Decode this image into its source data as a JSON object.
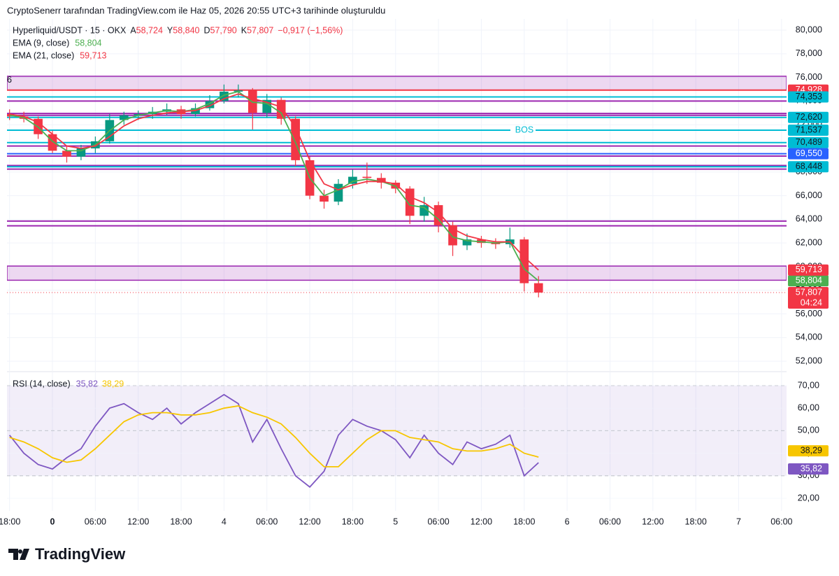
{
  "header": "CryptoSenerr tarafından TradingView.com ile Haz 05, 2026 20:55 UTC+3 tarihinde oluşturuldu",
  "footer": "TradingView",
  "chart_data": [
    {
      "type": "candlestick",
      "legend": {
        "symbol": "Hyperliquid/USDT · 15 · OKX",
        "ohlc": [
          {
            "key": "A",
            "value": 58.724,
            "label": "58,724"
          },
          {
            "key": "Y",
            "value": 58.84,
            "label": "58,840"
          },
          {
            "key": "D",
            "value": 57.79,
            "label": "57,790"
          },
          {
            "key": "K",
            "value": 57.807,
            "label": "57,807"
          }
        ],
        "change": "−0,917 (−1,56%)"
      },
      "countdown": "04:24",
      "up_color": "#089981",
      "down_color": "#f23645",
      "xlim": [
        -6.36,
        102.7
      ],
      "ylim": [
        51.18,
        80.95
      ],
      "xticks": [
        {
          "value": -6,
          "label": "18:00"
        },
        0,
        {
          "value": 6,
          "label": "06:00"
        },
        {
          "value": 12,
          "label": "12:00"
        },
        {
          "value": 18,
          "label": "18:00"
        },
        {
          "value": 24,
          "label": "4"
        },
        {
          "value": 30,
          "label": "06:00"
        },
        {
          "value": 36,
          "label": "12:00"
        },
        {
          "value": 42,
          "label": "18:00"
        },
        {
          "value": 48,
          "label": "5"
        },
        {
          "value": 54,
          "label": "06:00"
        },
        {
          "value": 60,
          "label": "12:00"
        },
        {
          "value": 66,
          "label": "18:00"
        },
        {
          "value": 72,
          "label": "6"
        },
        {
          "value": 78,
          "label": "06:00"
        },
        {
          "value": 84,
          "label": "12:00"
        },
        {
          "value": 90,
          "label": "18:00"
        },
        {
          "value": 96,
          "label": "7"
        },
        {
          "value": 102,
          "label": "06:00"
        }
      ],
      "xtick_first_label_override": null,
      "yticks": [
        {
          "value": 80,
          "label": "80,000"
        },
        {
          "value": 78,
          "label": "78,000"
        },
        {
          "value": 76,
          "label": "76,000"
        },
        {
          "value": 74,
          "label": "74,000"
        },
        {
          "value": 72,
          "label": "72,000"
        },
        {
          "value": 70,
          "label": "70,000"
        },
        {
          "value": 68,
          "label": "68,000"
        },
        {
          "value": 66,
          "label": "66,000"
        },
        {
          "value": 64,
          "label": "64,000"
        },
        {
          "value": 62,
          "label": "62,000"
        },
        {
          "value": 60,
          "label": "60,000"
        },
        {
          "value": 58,
          "label": "58,000"
        },
        {
          "value": 56,
          "label": "56,000"
        },
        {
          "value": 54,
          "label": "54,000"
        },
        {
          "value": 52,
          "label": "52,000"
        }
      ],
      "x": [
        -6,
        -4,
        -2,
        0,
        2,
        4,
        6,
        8,
        10,
        12,
        14,
        16,
        18,
        20,
        22,
        24,
        26,
        28,
        30,
        32,
        34,
        36,
        38,
        40,
        42,
        44,
        46,
        48,
        50,
        52,
        54,
        56,
        58,
        60,
        62,
        64,
        66,
        68
      ],
      "candles": [
        [
          72.9,
          73.3,
          72.4,
          72.7
        ],
        [
          72.7,
          73.1,
          72.2,
          72.5
        ],
        [
          72.5,
          72.7,
          70.8,
          71.2
        ],
        [
          71.2,
          71.5,
          69.6,
          69.8
        ],
        [
          69.8,
          70.2,
          68.8,
          69.3
        ],
        [
          69.3,
          70.3,
          69.0,
          70.0
        ],
        [
          70.0,
          71.0,
          69.6,
          70.6
        ],
        [
          70.6,
          72.9,
          70.4,
          72.4
        ],
        [
          72.4,
          73.1,
          72.0,
          72.8
        ],
        [
          72.8,
          73.2,
          72.4,
          72.9
        ],
        [
          72.9,
          73.5,
          72.5,
          73.1
        ],
        [
          73.1,
          73.8,
          72.8,
          73.3
        ],
        [
          73.3,
          73.6,
          72.5,
          72.9
        ],
        [
          72.9,
          73.8,
          72.7,
          73.4
        ],
        [
          73.4,
          74.5,
          73.2,
          74.0
        ],
        [
          74.0,
          75.4,
          73.8,
          74.8
        ],
        [
          74.8,
          75.4,
          74.3,
          74.9
        ],
        [
          74.9,
          75.1,
          71.6,
          73.0
        ],
        [
          73.0,
          74.6,
          72.6,
          74.1
        ],
        [
          74.1,
          74.3,
          72.0,
          72.5
        ],
        [
          72.5,
          72.7,
          68.5,
          69.0
        ],
        [
          69.0,
          69.3,
          65.7,
          66.0
        ],
        [
          66.0,
          66.5,
          64.9,
          65.5
        ],
        [
          65.5,
          67.4,
          65.2,
          67.0
        ],
        [
          67.0,
          68.2,
          66.6,
          67.6
        ],
        [
          67.6,
          68.8,
          67.0,
          67.5
        ],
        [
          67.5,
          67.9,
          66.6,
          67.1
        ],
        [
          67.1,
          67.3,
          66.2,
          66.6
        ],
        [
          66.6,
          66.8,
          63.6,
          64.3
        ],
        [
          64.3,
          65.9,
          63.8,
          65.2
        ],
        [
          65.2,
          65.5,
          62.9,
          63.5
        ],
        [
          63.5,
          63.8,
          60.9,
          61.8
        ],
        [
          61.8,
          62.8,
          61.4,
          62.3
        ],
        [
          62.3,
          62.6,
          61.6,
          62.0
        ],
        [
          62.0,
          62.4,
          61.5,
          61.9
        ],
        [
          61.9,
          63.3,
          61.6,
          62.3
        ],
        [
          62.3,
          62.5,
          57.9,
          58.6
        ],
        [
          58.6,
          59.2,
          57.4,
          57.807
        ]
      ],
      "series": [
        {
          "name": "EMA (9, close)",
          "color": "#4caf50",
          "last_label": "58,804",
          "values": [
            72.8,
            72.6,
            71.8,
            70.6,
            69.8,
            69.8,
            70.3,
            71.5,
            72.4,
            72.8,
            73.0,
            73.2,
            73.1,
            73.3,
            73.8,
            74.5,
            74.8,
            73.9,
            73.8,
            73.0,
            70.5,
            67.5,
            66.0,
            66.5,
            67.2,
            67.4,
            67.2,
            66.8,
            65.2,
            65.0,
            64.0,
            62.5,
            62.2,
            62.1,
            62.0,
            62.1,
            59.8,
            58.804
          ]
        },
        {
          "name": "EMA (21, close)",
          "color": "#f23645",
          "last_label": "59,713",
          "values": [
            72.9,
            72.7,
            72.2,
            71.2,
            70.2,
            70.0,
            70.2,
            71.0,
            71.9,
            72.5,
            72.8,
            73.0,
            73.1,
            73.2,
            73.6,
            74.2,
            74.6,
            74.2,
            73.9,
            73.5,
            71.8,
            69.0,
            67.0,
            66.5,
            66.9,
            67.2,
            67.2,
            67.0,
            65.9,
            65.4,
            64.6,
            63.2,
            62.6,
            62.3,
            62.1,
            62.1,
            60.8,
            59.713
          ]
        }
      ],
      "zones": [
        {
          "from": 74.928,
          "to": 76.1,
          "tag": "6"
        },
        {
          "from": 58.85,
          "to": 60.05
        }
      ],
      "zone_color": "#9c27b0",
      "levels": [
        {
          "value": 74.928,
          "color": "#f23645",
          "label": "74,928"
        },
        {
          "value": 74.353,
          "color": "#00bcd4",
          "label": "74,353"
        },
        {
          "value": 74.0,
          "color": "#9c27b0"
        },
        {
          "value": 72.95,
          "color": "#9c27b0"
        },
        {
          "value": 72.8,
          "color": "#9c27b0"
        },
        {
          "value": 72.62,
          "color": "#00bcd4",
          "label": "72,620"
        },
        {
          "value": 71.537,
          "color": "#00bcd4",
          "label": "71,537",
          "text": "BOS"
        },
        {
          "value": 70.489,
          "color": "#00bcd4",
          "label": "70,489"
        },
        {
          "value": 70.2,
          "color": "#9c27b0"
        },
        {
          "value": 69.55,
          "color": "#2962ff",
          "label": "69,550"
        },
        {
          "value": 69.35,
          "color": "#9c27b0"
        },
        {
          "value": 68.55,
          "color": "#9c27b0"
        },
        {
          "value": 68.448,
          "color": "#00bcd4",
          "label": "68,448"
        },
        {
          "value": 68.25,
          "color": "#9c27b0"
        },
        {
          "value": 63.85,
          "color": "#9c27b0"
        },
        {
          "value": 63.45,
          "color": "#9c27b0"
        }
      ]
    },
    {
      "type": "rsi",
      "ylim": [
        14.4,
        75.9
      ],
      "yticks": [
        {
          "value": 70,
          "label": "70,00"
        },
        {
          "value": 60,
          "label": "60,00"
        },
        {
          "value": 50,
          "label": "50,00"
        },
        {
          "value": 40,
          "label": "40,00"
        },
        {
          "value": 30,
          "label": "30,00"
        },
        {
          "value": 20,
          "label": "20,00"
        }
      ],
      "band": [
        30,
        70
      ],
      "dashed_levels": [
        70,
        50,
        30
      ],
      "band_color": "#7e57c2",
      "series": [
        {
          "name": "RSI (14, close)",
          "color": "#7e57c2",
          "last_label": "35,82",
          "values": [
            48,
            40,
            35,
            33,
            38,
            42,
            52,
            60,
            62,
            58,
            55,
            60,
            53,
            58,
            62,
            66,
            62,
            45,
            55,
            42,
            30,
            25,
            32,
            48,
            55,
            52,
            50,
            46,
            38,
            48,
            40,
            35,
            45,
            42,
            44,
            48,
            30,
            35.82
          ]
        },
        {
          "color": "#f7c600",
          "last_label": "38,29",
          "values": [
            47,
            45,
            42,
            38,
            36,
            37,
            42,
            48,
            54,
            57,
            58,
            58,
            57,
            57,
            58,
            60,
            61,
            58,
            56,
            53,
            47,
            40,
            34,
            34,
            40,
            46,
            50,
            50,
            47,
            46,
            45,
            42,
            41,
            41,
            42,
            44,
            40,
            38.29
          ]
        }
      ]
    }
  ]
}
